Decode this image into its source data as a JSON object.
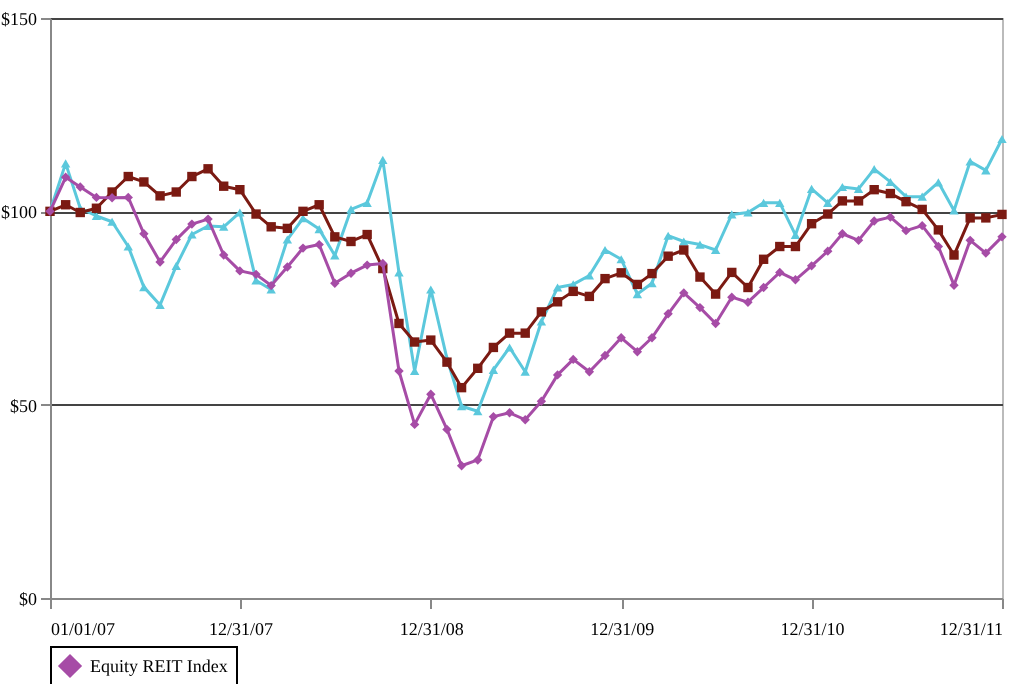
{
  "chart_data": {
    "type": "line",
    "x": [
      "2007-01-01",
      "2007-01-31",
      "2007-02-28",
      "2007-03-31",
      "2007-04-30",
      "2007-05-31",
      "2007-06-30",
      "2007-07-31",
      "2007-08-31",
      "2007-09-30",
      "2007-10-31",
      "2007-11-30",
      "2007-12-31",
      "2008-01-31",
      "2008-02-29",
      "2008-03-31",
      "2008-04-30",
      "2008-05-31",
      "2008-06-30",
      "2008-07-31",
      "2008-08-31",
      "2008-09-30",
      "2008-10-31",
      "2008-11-30",
      "2008-12-31",
      "2009-01-31",
      "2009-02-28",
      "2009-03-31",
      "2009-04-30",
      "2009-05-31",
      "2009-06-30",
      "2009-07-31",
      "2009-08-31",
      "2009-09-30",
      "2009-10-31",
      "2009-11-30",
      "2009-12-31",
      "2010-01-31",
      "2010-02-28",
      "2010-03-31",
      "2010-04-30",
      "2010-05-31",
      "2010-06-30",
      "2010-07-31",
      "2010-08-31",
      "2010-09-30",
      "2010-10-31",
      "2010-11-30",
      "2010-12-31",
      "2011-01-31",
      "2011-02-28",
      "2011-03-31",
      "2011-04-30",
      "2011-05-31",
      "2011-06-30",
      "2011-07-31",
      "2011-08-31",
      "2011-09-30",
      "2011-10-31",
      "2011-11-30",
      "2011-12-31"
    ],
    "series": [
      {
        "name": "Equity REIT Index",
        "color": "#a64ca6",
        "marker": "diamond",
        "values": [
          100,
          108.8,
          106.3,
          103.6,
          103.5,
          103.6,
          94.2,
          86.9,
          92.7,
          96.7,
          98,
          88.7,
          84.6,
          83.7,
          80.8,
          85.6,
          90.5,
          91.4,
          81.4,
          84,
          86.1,
          86.5,
          58.7,
          44.9,
          52.7,
          43.6,
          34.2,
          35.7,
          46.9,
          47.9,
          46.1,
          50.9,
          57.7,
          61.7,
          58.5,
          62.7,
          67.3,
          63.7,
          67.3,
          73.5,
          78.9,
          75.1,
          71,
          77.8,
          76.5,
          80.3,
          84.2,
          82.3,
          85.9,
          89.7,
          94.2,
          92.5,
          97.5,
          98.5,
          95,
          96.3,
          90.9,
          80.9,
          92.5,
          89.2,
          93.4
        ]
      },
      {
        "color": "#7b1a12",
        "marker": "square",
        "values": [
          100,
          101.7,
          99.7,
          100.8,
          105,
          109,
          107.6,
          104,
          105,
          109,
          111,
          106.5,
          105.6,
          99.3,
          96,
          95.6,
          100,
          101.7,
          93.4,
          92.2,
          94,
          85.2,
          71,
          66.2,
          66.7,
          61,
          54.4,
          59.4,
          64.8,
          68.5,
          68.5,
          74,
          76.6,
          79.3,
          78,
          82.6,
          84.1,
          81.1,
          83.9,
          88.4,
          90,
          83,
          78.6,
          84.2,
          80.3,
          87.6,
          90.9,
          90.9,
          96.8,
          99.3,
          102.7,
          102.7,
          105.6,
          104.6,
          102.5,
          100.5,
          95.2,
          88.7,
          98.3,
          98.3,
          99.2
        ]
      },
      {
        "color": "#5bc8dc",
        "marker": "triangle",
        "values": [
          100,
          112.4,
          100.8,
          98.8,
          97.3,
          90.9,
          80.4,
          75.8,
          85.9,
          94,
          96.2,
          96,
          99.7,
          82.1,
          79.8,
          92.7,
          98.2,
          95.4,
          88.6,
          100.5,
          102.2,
          113.3,
          84.2,
          58.7,
          79.8,
          61.9,
          49.6,
          48.3,
          59,
          64.8,
          58.5,
          71.5,
          80.3,
          81.1,
          83.4,
          90,
          87.6,
          78.6,
          81.4,
          93.7,
          92.2,
          91.4,
          90,
          99.2,
          99.7,
          102.2,
          102.2,
          93.9,
          105.8,
          102.2,
          106.3,
          105.8,
          110.9,
          107.6,
          103.8,
          103.8,
          107.5,
          100.2,
          112.9,
          110.6,
          118.7
        ]
      }
    ],
    "xlim": [
      "2007-01-01",
      "2011-12-31"
    ],
    "xticks": [
      {
        "value": "2007-01-01",
        "label": "01/01/07"
      },
      {
        "value": "2007-12-31",
        "label": "12/31/07"
      },
      {
        "value": "2008-12-31",
        "label": "12/31/08"
      },
      {
        "value": "2009-12-31",
        "label": "12/31/09"
      },
      {
        "value": "2010-12-31",
        "label": "12/31/10"
      },
      {
        "value": "2011-12-31",
        "label": "12/31/11"
      }
    ],
    "ylim": [
      0,
      150
    ],
    "yticks": [
      {
        "value": 0,
        "label": "$0"
      },
      {
        "value": 50,
        "label": "$50"
      },
      {
        "value": 100,
        "label": "$100"
      },
      {
        "value": 150,
        "label": "$150"
      }
    ],
    "grid": "y",
    "legend": "bottom"
  }
}
